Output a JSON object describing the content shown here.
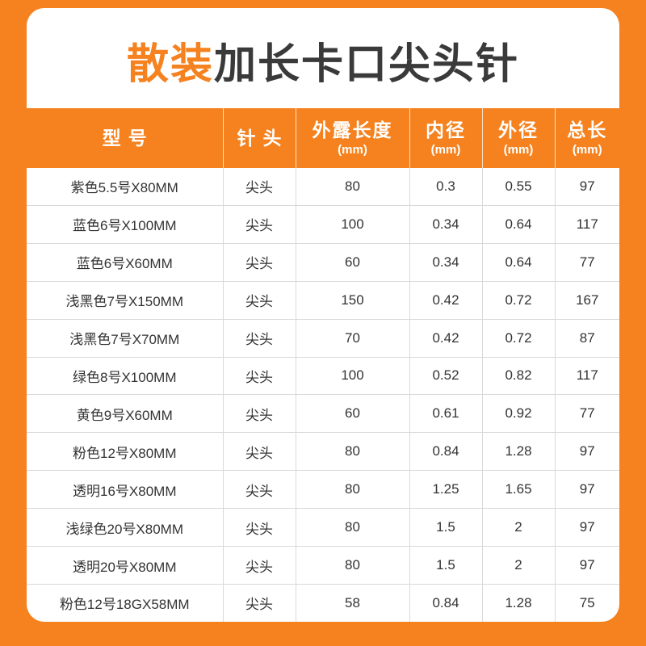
{
  "page": {
    "title_highlight": "散装",
    "title_rest": "加长卡口尖头针"
  },
  "colors": {
    "accent_orange": "#F5821F",
    "title_dark": "#3A3A3A",
    "grid_line": "#D9D9D9"
  },
  "table": {
    "headers": [
      {
        "label": "型号",
        "sub": ""
      },
      {
        "label": "针头",
        "sub": ""
      },
      {
        "label": "外露长度",
        "sub": "(mm)"
      },
      {
        "label": "内径",
        "sub": "(mm)"
      },
      {
        "label": "外径",
        "sub": "(mm)"
      },
      {
        "label": "总长",
        "sub": "(mm)"
      }
    ],
    "rows": [
      [
        "紫色5.5号X80MM",
        "尖头",
        "80",
        "0.3",
        "0.55",
        "97"
      ],
      [
        "蓝色6号X100MM",
        "尖头",
        "100",
        "0.34",
        "0.64",
        "117"
      ],
      [
        "蓝色6号X60MM",
        "尖头",
        "60",
        "0.34",
        "0.64",
        "77"
      ],
      [
        "浅黑色7号X150MM",
        "尖头",
        "150",
        "0.42",
        "0.72",
        "167"
      ],
      [
        "浅黑色7号X70MM",
        "尖头",
        "70",
        "0.42",
        "0.72",
        "87"
      ],
      [
        "绿色8号X100MM",
        "尖头",
        "100",
        "0.52",
        "0.82",
        "117"
      ],
      [
        "黄色9号X60MM",
        "尖头",
        "60",
        "0.61",
        "0.92",
        "77"
      ],
      [
        "粉色12号X80MM",
        "尖头",
        "80",
        "0.84",
        "1.28",
        "97"
      ],
      [
        "透明16号X80MM",
        "尖头",
        "80",
        "1.25",
        "1.65",
        "97"
      ],
      [
        "浅绿色20号X80MM",
        "尖头",
        "80",
        "1.5",
        "2",
        "97"
      ],
      [
        "透明20号X80MM",
        "尖头",
        "80",
        "1.5",
        "2",
        "97"
      ],
      [
        "粉色12号18GX58MM",
        "尖头",
        "58",
        "0.84",
        "1.28",
        "75"
      ]
    ]
  }
}
